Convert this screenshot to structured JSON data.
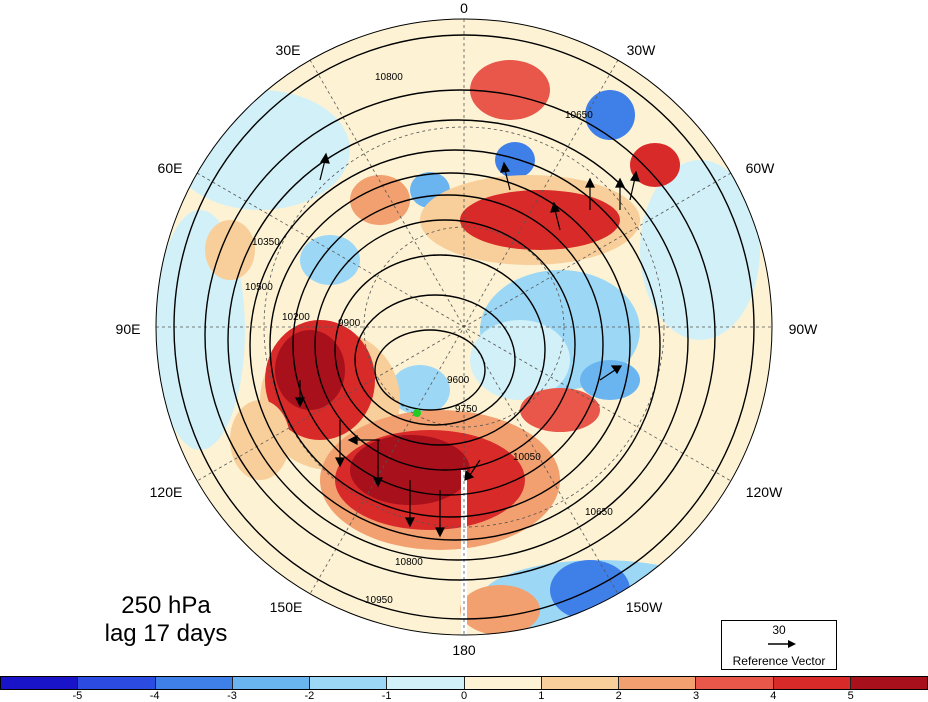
{
  "map": {
    "title_line1": "250 hPa",
    "title_line2": "lag 17 days",
    "projection": "north polar stereographic",
    "lon_labels": [
      "0",
      "30W",
      "60W",
      "90W",
      "120W",
      "150W",
      "180",
      "150E",
      "120E",
      "90E",
      "60E",
      "30E"
    ],
    "contour_labels": [
      "10800",
      "10650",
      "10500",
      "10350",
      "10200",
      "10050",
      "9900",
      "9750",
      "9600",
      "10950",
      "10800",
      "10650"
    ],
    "marker_color": "#22cc22"
  },
  "reference_vector": {
    "value": "30",
    "caption": "Reference Vector"
  },
  "colorbar": {
    "colors": [
      "#1a14c8",
      "#2c4be0",
      "#3f7fe8",
      "#6ab4f0",
      "#9cd8f5",
      "#d2f0f7",
      "#fdf3d4",
      "#f8cf9a",
      "#f2a070",
      "#e8574a",
      "#d92a2a",
      "#a8101c"
    ],
    "tick_labels": [
      "-5",
      "-4",
      "-3",
      "-2",
      "-1",
      "0",
      "1",
      "2",
      "3",
      "4",
      "5"
    ]
  }
}
